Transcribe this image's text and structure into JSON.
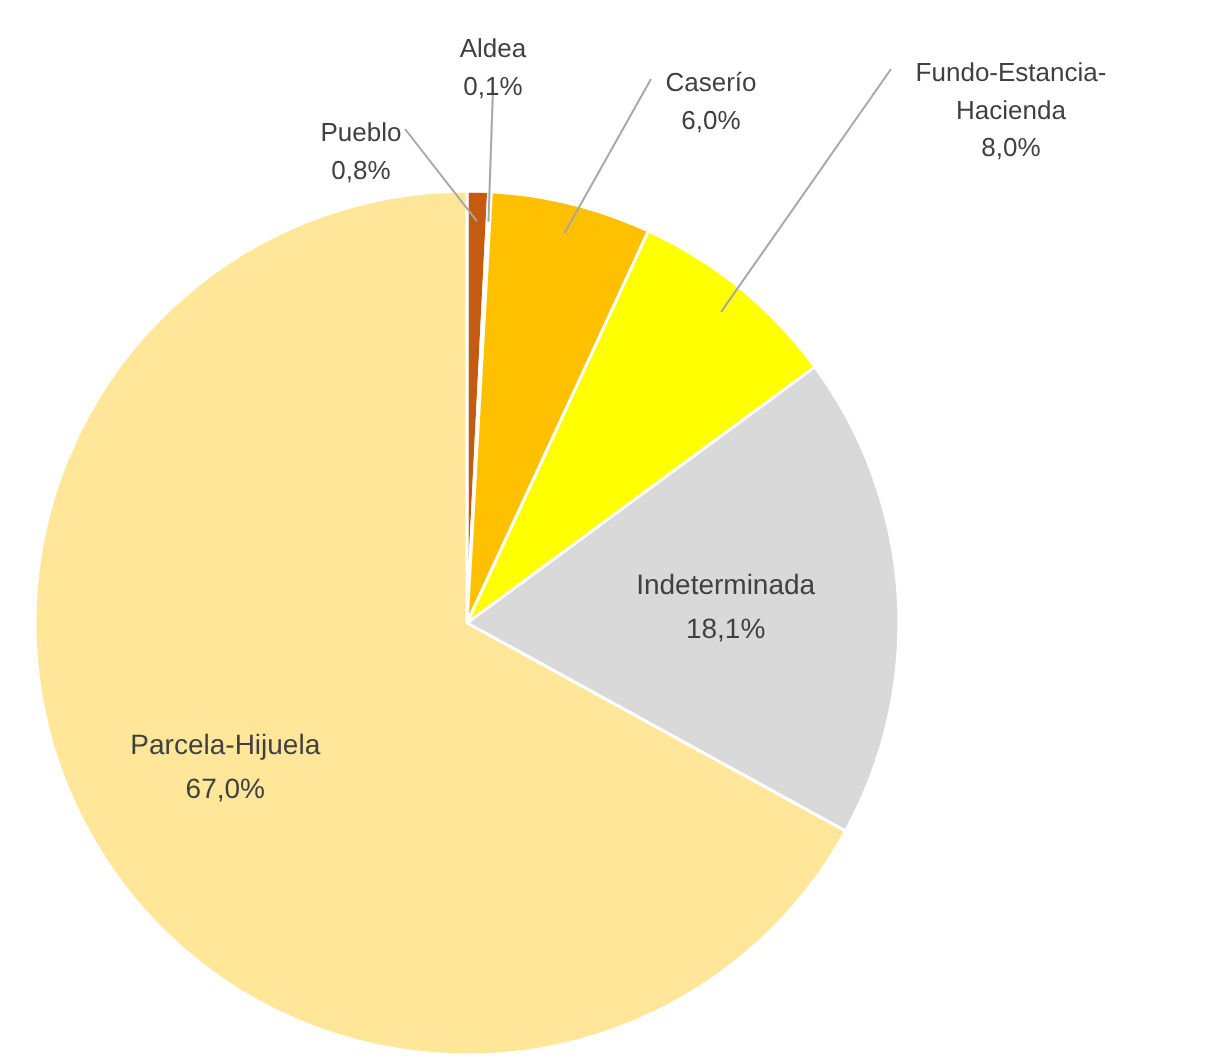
{
  "chart_data": {
    "type": "pie",
    "categories": [
      "Pueblo",
      "Aldea",
      "Caserío",
      "Fundo-Estancia-Hacienda",
      "Indeterminada",
      "Parcela-Hijuela"
    ],
    "values": [
      0.8,
      0.1,
      6.0,
      8.0,
      18.1,
      67.0
    ],
    "colors": [
      "#c55a11",
      "#f4b183",
      "#ffc000",
      "#ffff00",
      "#d9d9d9",
      "#ffe699"
    ],
    "value_labels": [
      "0,8%",
      "0,1%",
      "6,0%",
      "8,0%",
      "18,1%",
      "67,0%"
    ]
  }
}
